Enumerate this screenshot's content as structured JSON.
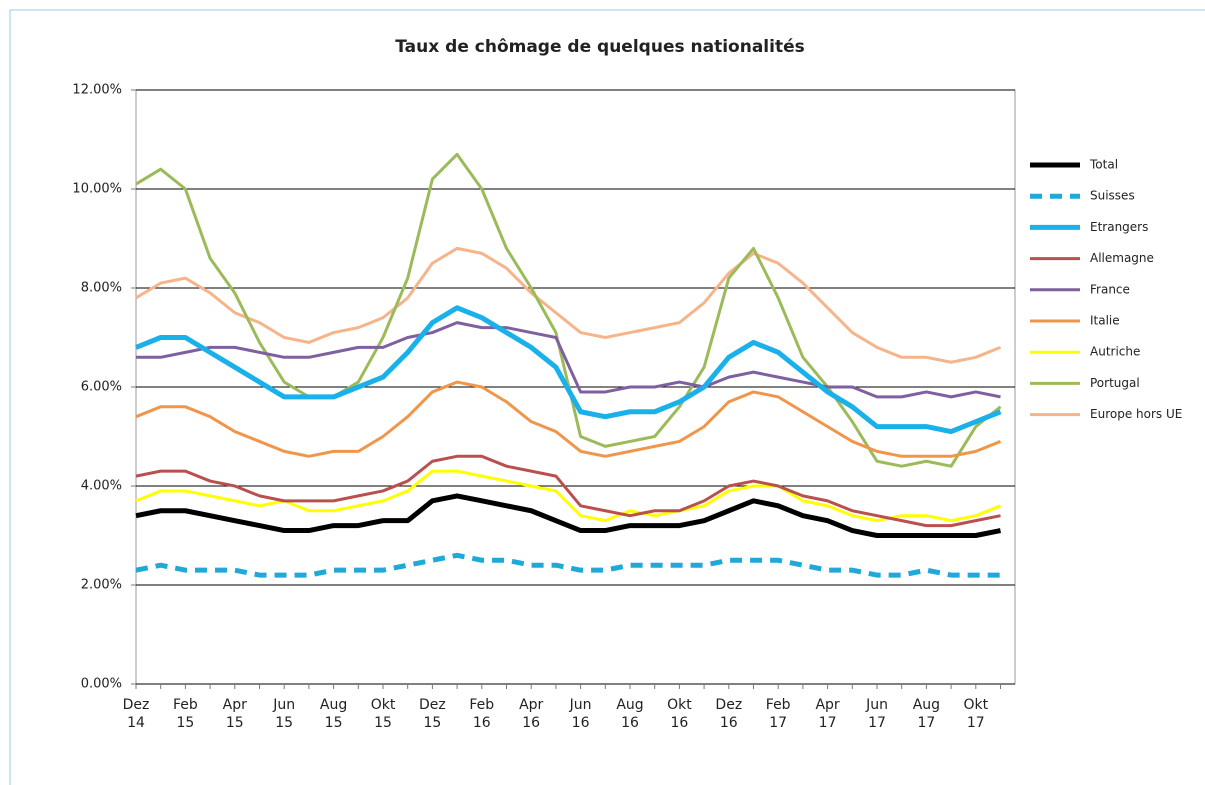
{
  "chart_data": {
    "type": "line",
    "title": "Taux de chômage de quelques nationalités",
    "categories": [
      "Dez 14",
      null,
      "Feb 15",
      null,
      "Apr 15",
      null,
      "Jun 15",
      null,
      "Aug 15",
      null,
      "Okt 15",
      null,
      "Dez 15",
      null,
      "Feb 16",
      null,
      "Apr 16",
      null,
      "Jun 16",
      null,
      "Aug 16",
      null,
      "Okt 16",
      null,
      "Dez 16",
      null,
      "Feb 17",
      null,
      "Apr 17",
      null,
      "Jun 17",
      null,
      "Aug 17",
      null,
      "Okt 17",
      null
    ],
    "ylim": [
      0,
      12
    ],
    "yticks": [
      {
        "value": 0,
        "label": "0.00%"
      },
      {
        "value": 2,
        "label": "2.00%"
      },
      {
        "value": 4,
        "label": "4.00%"
      },
      {
        "value": 6,
        "label": "6.00%"
      },
      {
        "value": 8,
        "label": "8.00%"
      },
      {
        "value": 10,
        "label": "10.00%"
      },
      {
        "value": 12,
        "label": "12.00%"
      }
    ],
    "grid": true,
    "legend": "right",
    "series": [
      {
        "name": "Total",
        "color": "#000000",
        "line_width": 5,
        "dashed": false,
        "values": [
          3.4,
          3.5,
          3.5,
          3.4,
          3.3,
          3.2,
          3.1,
          3.1,
          3.2,
          3.2,
          3.3,
          3.3,
          3.7,
          3.8,
          3.7,
          3.6,
          3.5,
          3.3,
          3.1,
          3.1,
          3.2,
          3.2,
          3.2,
          3.3,
          3.5,
          3.7,
          3.6,
          3.4,
          3.3,
          3.1,
          3.0,
          3.0,
          3.0,
          3.0,
          3.0,
          3.1
        ]
      },
      {
        "name": "Suisses",
        "color": "#1fa8d8",
        "line_width": 5,
        "dashed": true,
        "values": [
          2.3,
          2.4,
          2.3,
          2.3,
          2.3,
          2.2,
          2.2,
          2.2,
          2.3,
          2.3,
          2.3,
          2.4,
          2.5,
          2.6,
          2.5,
          2.5,
          2.4,
          2.4,
          2.3,
          2.3,
          2.4,
          2.4,
          2.4,
          2.4,
          2.5,
          2.5,
          2.5,
          2.4,
          2.3,
          2.3,
          2.2,
          2.2,
          2.3,
          2.2,
          2.2,
          2.2
        ]
      },
      {
        "name": "Etrangers",
        "color": "#1ab0ea",
        "line_width": 5,
        "dashed": false,
        "values": [
          6.8,
          7.0,
          7.0,
          6.7,
          6.4,
          6.1,
          5.8,
          5.8,
          5.8,
          6.0,
          6.2,
          6.7,
          7.3,
          7.6,
          7.4,
          7.1,
          6.8,
          6.4,
          5.5,
          5.4,
          5.5,
          5.5,
          5.7,
          6.0,
          6.6,
          6.9,
          6.7,
          6.3,
          5.9,
          5.6,
          5.2,
          5.2,
          5.2,
          5.1,
          5.3,
          5.5
        ]
      },
      {
        "name": "Allemagne",
        "color": "#b9504e",
        "line_width": 3,
        "dashed": false,
        "values": [
          4.2,
          4.3,
          4.3,
          4.1,
          4.0,
          3.8,
          3.7,
          3.7,
          3.7,
          3.8,
          3.9,
          4.1,
          4.5,
          4.6,
          4.6,
          4.4,
          4.3,
          4.2,
          3.6,
          3.5,
          3.4,
          3.5,
          3.5,
          3.7,
          4.0,
          4.1,
          4.0,
          3.8,
          3.7,
          3.5,
          3.4,
          3.3,
          3.2,
          3.2,
          3.3,
          3.4
        ]
      },
      {
        "name": "France",
        "color": "#7e60a0",
        "line_width": 3,
        "dashed": false,
        "values": [
          6.6,
          6.6,
          6.7,
          6.8,
          6.8,
          6.7,
          6.6,
          6.6,
          6.7,
          6.8,
          6.8,
          7.0,
          7.1,
          7.3,
          7.2,
          7.2,
          7.1,
          7.0,
          5.9,
          5.9,
          6.0,
          6.0,
          6.1,
          6.0,
          6.2,
          6.3,
          6.2,
          6.1,
          6.0,
          6.0,
          5.8,
          5.8,
          5.9,
          5.8,
          5.9,
          5.8
        ]
      },
      {
        "name": "Italie",
        "color": "#f0964a",
        "line_width": 3,
        "dashed": false,
        "values": [
          5.4,
          5.6,
          5.6,
          5.4,
          5.1,
          4.9,
          4.7,
          4.6,
          4.7,
          4.7,
          5.0,
          5.4,
          5.9,
          6.1,
          6.0,
          5.7,
          5.3,
          5.1,
          4.7,
          4.6,
          4.7,
          4.8,
          4.9,
          5.2,
          5.7,
          5.9,
          5.8,
          5.5,
          5.2,
          4.9,
          4.7,
          4.6,
          4.6,
          4.6,
          4.7,
          4.9
        ]
      },
      {
        "name": "Autriche",
        "color": "#ffff00",
        "line_width": 3,
        "dashed": false,
        "values": [
          3.7,
          3.9,
          3.9,
          3.8,
          3.7,
          3.6,
          3.7,
          3.5,
          3.5,
          3.6,
          3.7,
          3.9,
          4.3,
          4.3,
          4.2,
          4.1,
          4.0,
          3.9,
          3.4,
          3.3,
          3.5,
          3.4,
          3.5,
          3.6,
          3.9,
          4.0,
          4.0,
          3.7,
          3.6,
          3.4,
          3.3,
          3.4,
          3.4,
          3.3,
          3.4,
          3.6
        ]
      },
      {
        "name": "Portugal",
        "color": "#9bbb59",
        "line_width": 3,
        "dashed": false,
        "values": [
          10.1,
          10.4,
          10.0,
          8.6,
          7.9,
          6.9,
          6.1,
          5.8,
          5.8,
          6.1,
          7.0,
          8.2,
          10.2,
          10.7,
          10.0,
          8.8,
          8.0,
          7.1,
          5.0,
          4.8,
          4.9,
          5.0,
          5.6,
          6.4,
          8.2,
          8.8,
          7.8,
          6.6,
          6.0,
          5.3,
          4.5,
          4.4,
          4.5,
          4.4,
          5.2,
          5.6
        ]
      },
      {
        "name": "Europe hors UE",
        "color": "#f5b48a",
        "line_width": 3,
        "dashed": false,
        "values": [
          7.8,
          8.1,
          8.2,
          7.9,
          7.5,
          7.3,
          7.0,
          6.9,
          7.1,
          7.2,
          7.4,
          7.8,
          8.5,
          8.8,
          8.7,
          8.4,
          7.9,
          7.5,
          7.1,
          7.0,
          7.1,
          7.2,
          7.3,
          7.7,
          8.3,
          8.7,
          8.5,
          8.1,
          7.6,
          7.1,
          6.8,
          6.6,
          6.6,
          6.5,
          6.6,
          6.8
        ]
      }
    ]
  }
}
